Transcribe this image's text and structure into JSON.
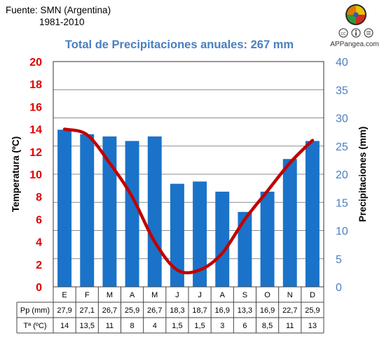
{
  "source": {
    "line1": "Fuente: SMN (Argentina)",
    "line2": "1981-2010"
  },
  "logo": {
    "label": "APPangea.com",
    "license_icons": [
      "cc-icon",
      "by-icon",
      "nd-icon"
    ]
  },
  "chart_data": {
    "type": "bar",
    "title": "Total de Precipitaciones anuales: 267 mm",
    "categories": [
      "E",
      "F",
      "M",
      "A",
      "M",
      "J",
      "J",
      "A",
      "S",
      "O",
      "N",
      "D"
    ],
    "series": [
      {
        "name": "Pp (mm)",
        "kind": "bar",
        "axis": "right",
        "color": "#1a73c9",
        "values": [
          27.9,
          27.1,
          26.7,
          25.9,
          26.7,
          18.3,
          18.7,
          16.9,
          13.3,
          16.9,
          22.7,
          25.9
        ],
        "labels": [
          "27,9",
          "27,1",
          "26,7",
          "25,9",
          "26,7",
          "18,3",
          "18,7",
          "16,9",
          "13,3",
          "16,9",
          "22,7",
          "25,9"
        ]
      },
      {
        "name": "Tª (ºC)",
        "kind": "line",
        "axis": "left",
        "color": "#c00000",
        "values": [
          14,
          13.5,
          11,
          8,
          4,
          1.5,
          1.5,
          3,
          6,
          8.5,
          11,
          13
        ],
        "labels": [
          "14",
          "13,5",
          "11",
          "8",
          "4",
          "1,5",
          "1,5",
          "3",
          "6",
          "8,5",
          "11",
          "13"
        ]
      }
    ],
    "y_left": {
      "label": "Temperatura (ºC)",
      "range": [
        0,
        20
      ],
      "ticks": [
        0,
        2,
        4,
        6,
        8,
        10,
        12,
        14,
        16,
        18,
        20
      ],
      "color": "#e00000"
    },
    "y_right": {
      "label": "Precipitaciones (mm)",
      "range": [
        0,
        40
      ],
      "ticks": [
        0,
        5,
        10,
        15,
        20,
        25,
        30,
        35,
        40
      ],
      "color": "#4a7fc0"
    },
    "grid": true,
    "table_rows": [
      "Pp (mm)",
      "Tª (ºC)"
    ]
  }
}
